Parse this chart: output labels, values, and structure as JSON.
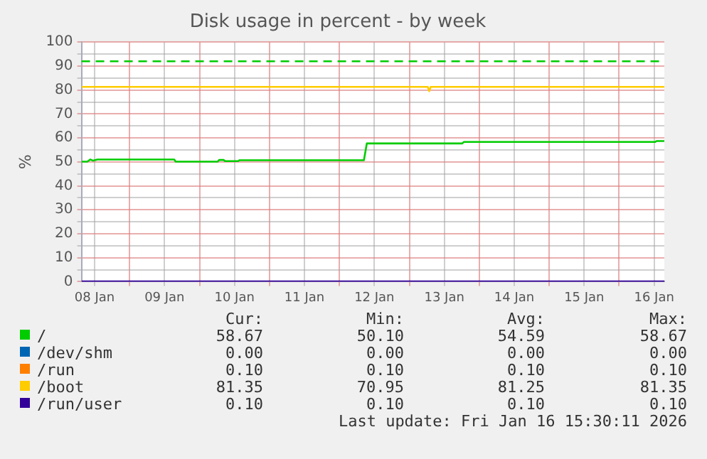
{
  "chart_data": {
    "type": "line",
    "title": "Disk usage in percent - by week",
    "ylabel": "%",
    "xlim": [
      "2026-01-08T07:30",
      "2026-01-16T15:30"
    ],
    "xticks": [
      {
        "value": "2026-01-08T12:00",
        "label": "08 Jan"
      },
      {
        "value": "2026-01-09",
        "label": null
      },
      {
        "value": "2026-01-09T12:00",
        "label": "09 Jan"
      },
      {
        "value": "2026-01-10",
        "label": null
      },
      {
        "value": "2026-01-10T12:00",
        "label": "10 Jan"
      },
      {
        "value": "2026-01-11",
        "label": null
      },
      {
        "value": "2026-01-11T12:00",
        "label": "11 Jan"
      },
      {
        "value": "2026-01-12",
        "label": null
      },
      {
        "value": "2026-01-12T12:00",
        "label": "12 Jan"
      },
      {
        "value": "2026-01-13",
        "label": null
      },
      {
        "value": "2026-01-13T12:00",
        "label": "13 Jan"
      },
      {
        "value": "2026-01-14",
        "label": null
      },
      {
        "value": "2026-01-14T12:00",
        "label": "14 Jan"
      },
      {
        "value": "2026-01-15",
        "label": null
      },
      {
        "value": "2026-01-15T12:00",
        "label": "15 Jan"
      },
      {
        "value": "2026-01-16",
        "label": null
      },
      {
        "value": "2026-01-16T12:00",
        "label": "16 Jan"
      }
    ],
    "ylim": [
      0,
      100
    ],
    "yticks": [
      0,
      {
        "value": 5,
        "label": null
      },
      10,
      {
        "value": 15,
        "label": null
      },
      20,
      {
        "value": 25,
        "label": null
      },
      30,
      {
        "value": 35,
        "label": null
      },
      40,
      {
        "value": 45,
        "label": null
      },
      50,
      {
        "value": 55,
        "label": null
      },
      60,
      {
        "value": 65,
        "label": null
      },
      70,
      {
        "value": 75,
        "label": null
      },
      80,
      {
        "value": 85,
        "label": null
      },
      90,
      {
        "value": 95,
        "label": null
      },
      100
    ],
    "grid": true,
    "legend": "bottom",
    "marker": "none",
    "line_style": "solid",
    "ref_lines": [
      {
        "axis": "y",
        "value": 92,
        "color": "#00cc00",
        "line_style": "dashed"
      }
    ],
    "series": [
      {
        "name": "/",
        "color": "#00cc00",
        "x": [
          "2026-01-08T07:30",
          "2026-01-08T09:30",
          "2026-01-08T10:30",
          "2026-01-08T11:30",
          "2026-01-08T13:00",
          "2026-01-09T15:20",
          "2026-01-09T15:50",
          "2026-01-10T06:15",
          "2026-01-10T06:45",
          "2026-01-10T08:15",
          "2026-01-10T08:45",
          "2026-01-10T13:15",
          "2026-01-10T13:45",
          "2026-01-12T08:25",
          "2026-01-12T09:25",
          "2026-01-13T18:10",
          "2026-01-13T18:40",
          "2026-01-16T12:20",
          "2026-01-16T12:50",
          "2026-01-16T15:30"
        ],
        "values": [
          50.1,
          50.1,
          51,
          50.5,
          51,
          51,
          50.1,
          50.1,
          50.8,
          50.8,
          50.3,
          50.3,
          50.7,
          50.7,
          57.7,
          57.7,
          58.3,
          58.3,
          58.7,
          58.7
        ]
      },
      {
        "name": "/dev/shm",
        "color": "#0066b3"
      },
      {
        "name": "/run",
        "color": "#ff8000"
      },
      {
        "name": "/boot",
        "color": "#ffcc00",
        "x": [
          "2026-01-08T07:30",
          "2026-01-13T06:20",
          "2026-01-13T06:50",
          "2026-01-13T07:20",
          "2026-01-16T15:30"
        ],
        "values": [
          81.3,
          81.3,
          79.5,
          81.3,
          81.3
        ]
      },
      {
        "name": "/run/user",
        "color": "#330099",
        "x": [
          "2026-01-08T07:30",
          "2026-01-16T15:30"
        ],
        "values": [
          0.1,
          0.1
        ]
      }
    ],
    "annotations": [
      "Cur:",
      "Min:",
      "Avg:",
      "Max:",
      "58.67",
      "50.10",
      "54.59",
      "58.67",
      "0.00",
      "0.00",
      "0.00",
      "0.00",
      "0.10",
      "0.10",
      "0.10",
      "0.10",
      "81.35",
      "70.95",
      "81.25",
      "81.35",
      "0.10",
      "0.10",
      "0.10",
      "0.10",
      "Last update: Fri Jan 16 15:30:11 2026"
    ]
  }
}
